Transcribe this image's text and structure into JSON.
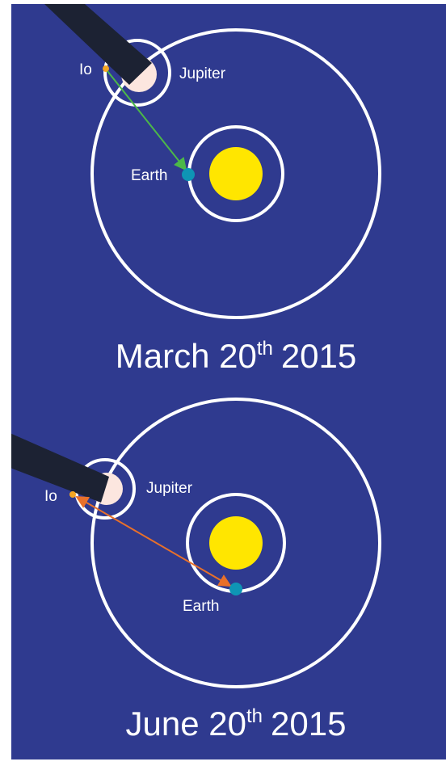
{
  "panels": [
    {
      "io": "Io",
      "jupiter": "Jupiter",
      "earth": "Earth",
      "date": "March 20",
      "date_sup": "th",
      "year": "2015"
    },
    {
      "io": "Io",
      "jupiter": "Jupiter",
      "earth": "Earth",
      "date": "June 20",
      "date_sup": "th",
      "year": "2015"
    }
  ]
}
